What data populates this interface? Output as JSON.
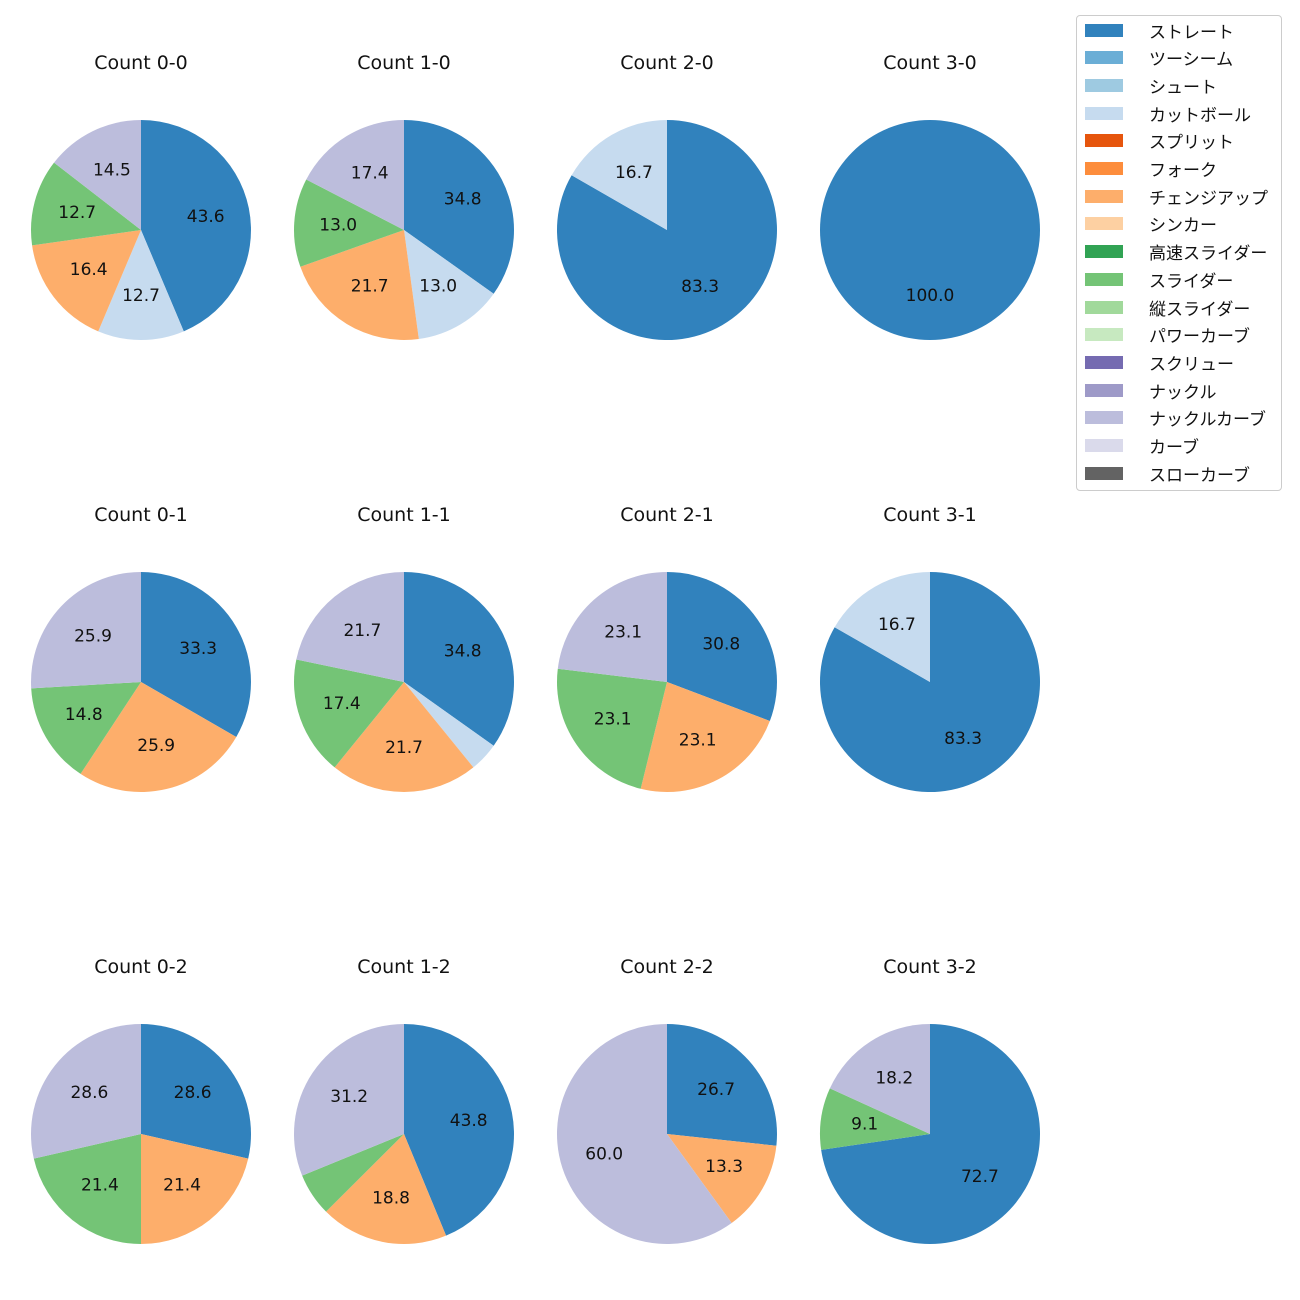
{
  "chart_data": {
    "type": "pie",
    "pitch_types": [
      {
        "name": "ストレート",
        "color": "#3182bd"
      },
      {
        "name": "ツーシーム",
        "color": "#6baed6"
      },
      {
        "name": "シュート",
        "color": "#9ecae1"
      },
      {
        "name": "カットボール",
        "color": "#c6dbef"
      },
      {
        "name": "スプリット",
        "color": "#e6550d"
      },
      {
        "name": "フォーク",
        "color": "#fd8d3c"
      },
      {
        "name": "チェンジアップ",
        "color": "#fdae6b"
      },
      {
        "name": "シンカー",
        "color": "#fdd0a2"
      },
      {
        "name": "高速スライダー",
        "color": "#31a354"
      },
      {
        "name": "スライダー",
        "color": "#74c476"
      },
      {
        "name": "縦スライダー",
        "color": "#a1d99b"
      },
      {
        "name": "パワーカーブ",
        "color": "#c7e9c0"
      },
      {
        "name": "スクリュー",
        "color": "#756bb1"
      },
      {
        "name": "ナックル",
        "color": "#9e9ac8"
      },
      {
        "name": "ナックルカーブ",
        "color": "#bcbddc"
      },
      {
        "name": "カーブ",
        "color": "#dadaeb"
      },
      {
        "name": "スローカーブ",
        "color": "#636363"
      }
    ],
    "legend_position": "top-right",
    "charts": [
      {
        "title": "Count 0-0",
        "slices": [
          {
            "type": "ストレート",
            "value": 43.6,
            "label": "43.6"
          },
          {
            "type": "カットボール",
            "value": 12.7,
            "label": "12.7"
          },
          {
            "type": "チェンジアップ",
            "value": 16.4,
            "label": "16.4"
          },
          {
            "type": "スライダー",
            "value": 12.7,
            "label": "12.7"
          },
          {
            "type": "ナックルカーブ",
            "value": 14.5,
            "label": "14.5"
          }
        ]
      },
      {
        "title": "Count 1-0",
        "slices": [
          {
            "type": "ストレート",
            "value": 34.8,
            "label": "34.8"
          },
          {
            "type": "カットボール",
            "value": 13.0,
            "label": "13.0"
          },
          {
            "type": "チェンジアップ",
            "value": 21.7,
            "label": "21.7"
          },
          {
            "type": "スライダー",
            "value": 13.0,
            "label": "13.0"
          },
          {
            "type": "ナックルカーブ",
            "value": 17.4,
            "label": "17.4"
          }
        ]
      },
      {
        "title": "Count 2-0",
        "slices": [
          {
            "type": "ストレート",
            "value": 83.3,
            "label": "83.3"
          },
          {
            "type": "カットボール",
            "value": 16.7,
            "label": "16.7"
          }
        ]
      },
      {
        "title": "Count 3-0",
        "slices": [
          {
            "type": "ストレート",
            "value": 100.0,
            "label": "100.0"
          }
        ]
      },
      {
        "title": "Count 0-1",
        "slices": [
          {
            "type": "ストレート",
            "value": 33.3,
            "label": "33.3"
          },
          {
            "type": "チェンジアップ",
            "value": 25.9,
            "label": "25.9"
          },
          {
            "type": "スライダー",
            "value": 14.8,
            "label": "14.8"
          },
          {
            "type": "ナックルカーブ",
            "value": 25.9,
            "label": "25.9"
          }
        ]
      },
      {
        "title": "Count 1-1",
        "slices": [
          {
            "type": "ストレート",
            "value": 34.8,
            "label": "34.8"
          },
          {
            "type": "カットボール",
            "value": 4.3,
            "label": ""
          },
          {
            "type": "チェンジアップ",
            "value": 21.7,
            "label": "21.7"
          },
          {
            "type": "スライダー",
            "value": 17.4,
            "label": "17.4"
          },
          {
            "type": "ナックルカーブ",
            "value": 21.7,
            "label": "21.7"
          }
        ]
      },
      {
        "title": "Count 2-1",
        "slices": [
          {
            "type": "ストレート",
            "value": 30.8,
            "label": "30.8"
          },
          {
            "type": "チェンジアップ",
            "value": 23.1,
            "label": "23.1"
          },
          {
            "type": "スライダー",
            "value": 23.1,
            "label": "23.1"
          },
          {
            "type": "ナックルカーブ",
            "value": 23.1,
            "label": "23.1"
          }
        ]
      },
      {
        "title": "Count 3-1",
        "slices": [
          {
            "type": "ストレート",
            "value": 83.3,
            "label": "83.3"
          },
          {
            "type": "カットボール",
            "value": 16.7,
            "label": "16.7"
          }
        ]
      },
      {
        "title": "Count 0-2",
        "slices": [
          {
            "type": "ストレート",
            "value": 28.6,
            "label": "28.6"
          },
          {
            "type": "チェンジアップ",
            "value": 21.4,
            "label": "21.4"
          },
          {
            "type": "スライダー",
            "value": 21.4,
            "label": "21.4"
          },
          {
            "type": "ナックルカーブ",
            "value": 28.6,
            "label": "28.6"
          }
        ]
      },
      {
        "title": "Count 1-2",
        "slices": [
          {
            "type": "ストレート",
            "value": 43.8,
            "label": "43.8"
          },
          {
            "type": "チェンジアップ",
            "value": 18.8,
            "label": "18.8"
          },
          {
            "type": "スライダー",
            "value": 6.3,
            "label": ""
          },
          {
            "type": "ナックルカーブ",
            "value": 31.2,
            "label": "31.2"
          }
        ]
      },
      {
        "title": "Count 2-2",
        "slices": [
          {
            "type": "ストレート",
            "value": 26.7,
            "label": "26.7"
          },
          {
            "type": "チェンジアップ",
            "value": 13.3,
            "label": "13.3"
          },
          {
            "type": "ナックルカーブ",
            "value": 60.0,
            "label": "60.0"
          }
        ]
      },
      {
        "title": "Count 3-2",
        "slices": [
          {
            "type": "ストレート",
            "value": 72.7,
            "label": "72.7"
          },
          {
            "type": "スライダー",
            "value": 9.1,
            "label": "9.1"
          },
          {
            "type": "ナックルカーブ",
            "value": 18.2,
            "label": "18.2"
          }
        ]
      }
    ]
  }
}
